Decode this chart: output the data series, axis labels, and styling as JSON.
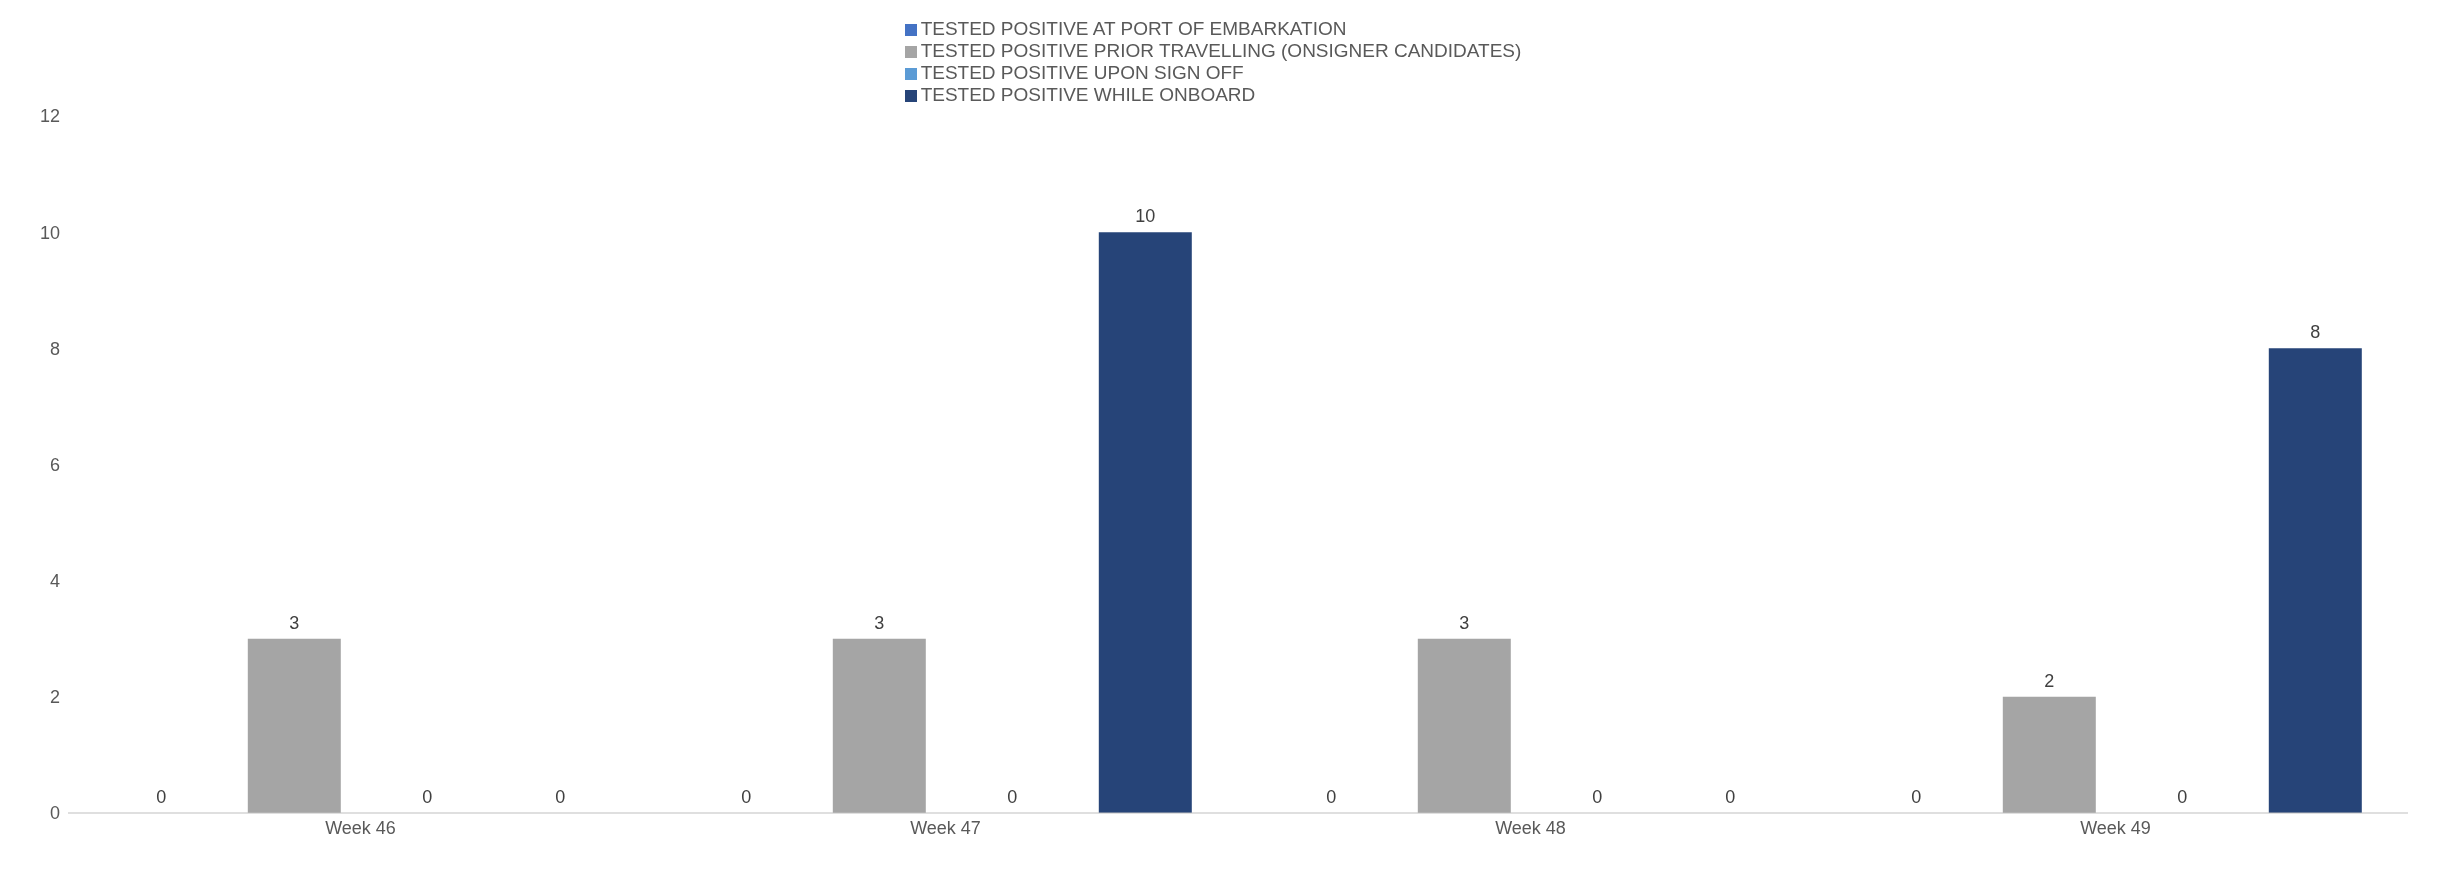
{
  "chart_data": {
    "type": "bar",
    "categories": [
      "Week 46",
      "Week 47",
      "Week 48",
      "Week 49"
    ],
    "series": [
      {
        "name": "TESTED POSITIVE AT PORT OF EMBARKATION",
        "color": "#4472c4",
        "values": [
          0,
          0,
          0,
          0
        ]
      },
      {
        "name": "TESTED POSITIVE PRIOR TRAVELLING (ONSIGNER CANDIDATES)",
        "color": "#a5a5a5",
        "values": [
          3,
          3,
          3,
          2
        ]
      },
      {
        "name": "TESTED POSITIVE UPON SIGN OFF",
        "color": "#5b9bd5",
        "values": [
          0,
          0,
          0,
          0
        ]
      },
      {
        "name": "TESTED POSITIVE WHILE ONBOARD",
        "color": "#264478",
        "values": [
          0,
          10,
          0,
          8
        ]
      }
    ],
    "ylim": [
      0,
      12
    ],
    "yticks": [
      0,
      2,
      4,
      6,
      8,
      10,
      12
    ],
    "grid": false,
    "legend": "top",
    "data_labels": true
  }
}
